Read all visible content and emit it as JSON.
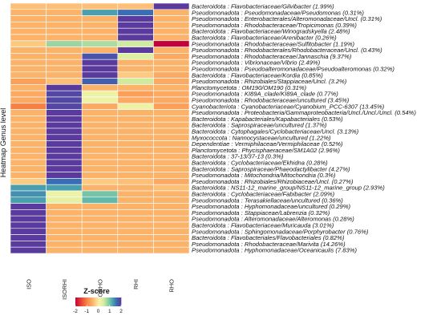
{
  "chart_data": {
    "type": "heatmap",
    "ylabel": "Heatmap Genus level",
    "columns": [
      "ISO",
      "ISORHI",
      "ISORHO",
      "RHI",
      "RHO"
    ],
    "rows": [
      "Bacteroidota : Flavobacteriaceae/Gilvibacter (1.99%)",
      "Pseudomonadota : Pseudomonadaceae/Pseudomonas (0.31%)",
      "Pseudomonadota : Enterobacterales/Alteromonadaceae/Uncl. (0.31%)",
      "Pseudomonadota : Rhodobacteraceae/Tropicimonas (0.39%)",
      "Bacteroidota : Flavobacteriaceae/Winogradskyella (2.48%)",
      "Bacteroidota : Flavobacteriaceae/Arenibacter (0.26%)",
      "Pseudomonadota : Rhodobacteraceae/Sulfitobacter (1.19%)",
      "Pseudomonadota : Rhodobacterales/Rhodobacteraceae/Uncl. (0.43%)",
      "Pseudomonadota : Rhodobacteraceae/Jannaschia (9.37%)",
      "Pseudomonadota : Vibrionaceae/Vibrio (2.49%)",
      "Pseudomonadota : Pseudoalteromonadaceae/Pseudoalteromonas (0.32%)",
      "Bacteroidota : Flavobacteriaceae/Kordia (0.85%)",
      "Pseudomonadota : Rhizobiales/Stappiaceae/Uncl. (3.2%)",
      "Planctomycetota : OM190/OM190 (0.31%)",
      "Pseudomonadota : KI89A_clade/KI89A_clade (0.77%)",
      "Pseudomonadota : Rhodobacteraceae/uncultured (3.45%)",
      "Cyanobacteriota : Cyanobacteriaceae/Cyanobium_PCC-6307 (13.45%)",
      "Pseudomonadota : Proteobacteria/Gammaproteobacteria/Uncl./Uncl./Uncl. (0.54%)",
      "Bacteroidota : Kapabacteriales/Kapabacteriales (0.53%)",
      "Bacteroidota : Saprospiraceae/uncultured (1.37%)",
      "Bacteroidota : Cytophagales/Cyclobacteriaceae/Uncl. (3.13%)",
      "Myxococcota : Nannocystaceae/uncultured (1.22%)",
      "Dependentiae : Vermiphilaceae/Vermiphilaceae (0.52%)",
      "Planctomycetota : Phycisphaeraceae/SM1A02 (2.96%)",
      "Bacteroidota : 37-13/37-13 (0.3%)",
      "Bacteroidota : Cyclobacteriaceae/Ekhidna (0.28%)",
      "Bacteroidota : Saprospiraceae/Phaeodactylibacter (4.27%)",
      "Pseudomonadota : Mitochondria/Mitochondria (0.3%)",
      "Pseudomonadota : Rhizobiales/Rhizobiaceae/Uncl. (0.27%)",
      "Bacteroidota : NS11-12_marine_group/NS11-12_marine_group (2.93%)",
      "Bacteroidota : Cyclobacteriaceae/Fabibacter (2.09%)",
      "Pseudomonadota : Terasakiellaceae/uncultured (0.36%)",
      "Pseudomonadota : Hyphomonadaceae/uncultured (0.29%)",
      "Pseudomonadota : Stappiaceae/Labrenzia (0.32%)",
      "Pseudomonadota : Alteromonadaceae/Alteromonas (0.28%)",
      "Bacteroidota : Flavobacteriaceae/Muricauda (3.01%)",
      "Pseudomonadota : Sphingomonadaceae/Porphyrobacter (0.76%)",
      "Bacteroidota : Flavobacteriales/Flavobacteriales (0.82%)",
      "Pseudomonadota : Rhodobacteraceae/Marivita (14.26%)",
      "Pseudomonadota : Hyphomonadaceae/Oceanicaulis (7.83%)"
    ],
    "values": [
      [
        -0.4,
        -0.4,
        -0.4,
        -0.4,
        2.0
      ],
      [
        -0.5,
        -0.5,
        1.3,
        1.6,
        -0.5
      ],
      [
        -0.5,
        -0.5,
        -0.5,
        2.0,
        -0.5
      ],
      [
        -0.5,
        -0.5,
        -0.5,
        2.0,
        -0.5
      ],
      [
        -0.5,
        -0.5,
        -0.5,
        2.0,
        -0.5
      ],
      [
        -0.5,
        -0.5,
        -0.5,
        2.0,
        -0.5
      ],
      [
        -0.3,
        0.8,
        0.7,
        0.5,
        -2.0
      ],
      [
        -0.5,
        -0.5,
        -0.5,
        2.0,
        -0.5
      ],
      [
        -0.5,
        -0.5,
        1.8,
        0.4,
        -0.6
      ],
      [
        -0.5,
        -0.5,
        2.0,
        -0.5,
        -0.5
      ],
      [
        -0.5,
        -0.5,
        2.0,
        -0.5,
        -0.5
      ],
      [
        -0.5,
        -0.5,
        2.0,
        -0.3,
        -0.6
      ],
      [
        -0.7,
        -0.4,
        1.7,
        0.5,
        -0.6
      ],
      [
        -0.5,
        2.0,
        -0.5,
        -0.5,
        -0.5
      ],
      [
        -0.6,
        1.9,
        0.2,
        -0.7,
        -0.6
      ],
      [
        -0.6,
        1.9,
        0.2,
        -0.6,
        -0.6
      ],
      [
        -1.0,
        1.9,
        -0.6,
        0.2,
        -0.7
      ],
      [
        -0.5,
        2.0,
        -0.5,
        -0.5,
        -0.5
      ],
      [
        -0.5,
        2.0,
        -0.5,
        -0.5,
        -0.5
      ],
      [
        -0.5,
        2.0,
        -0.5,
        -0.5,
        -0.5
      ],
      [
        -0.5,
        2.0,
        -0.5,
        -0.5,
        -0.5
      ],
      [
        -0.5,
        2.0,
        -0.5,
        -0.5,
        -0.5
      ],
      [
        -0.5,
        2.0,
        -0.5,
        -0.5,
        -0.5
      ],
      [
        -0.5,
        2.0,
        -0.5,
        -0.5,
        -0.5
      ],
      [
        -0.5,
        2.0,
        -0.5,
        -0.5,
        -0.5
      ],
      [
        -0.5,
        2.0,
        -0.5,
        -0.5,
        -0.5
      ],
      [
        -0.5,
        2.0,
        -0.5,
        -0.5,
        -0.5
      ],
      [
        -0.5,
        2.0,
        -0.5,
        -0.5,
        -0.5
      ],
      [
        -0.3,
        1.6,
        -0.3,
        -0.4,
        -0.6
      ],
      [
        1.3,
        1.3,
        -0.5,
        -0.5,
        -0.4
      ],
      [
        1.4,
        0.2,
        1.0,
        -0.5,
        -0.5
      ],
      [
        1.3,
        0.3,
        1.1,
        -0.5,
        -0.5
      ],
      [
        2.0,
        -0.5,
        -0.5,
        -0.5,
        -0.5
      ],
      [
        2.0,
        -0.5,
        -0.5,
        -0.5,
        -0.5
      ],
      [
        2.0,
        -0.5,
        -0.5,
        -0.5,
        -0.5
      ],
      [
        2.0,
        -0.5,
        -0.5,
        -0.5,
        -0.5
      ],
      [
        2.0,
        -0.5,
        -0.5,
        -0.5,
        -0.5
      ],
      [
        2.0,
        -0.5,
        -0.5,
        -0.5,
        -0.5
      ],
      [
        2.0,
        -0.5,
        -0.5,
        -0.5,
        -0.5
      ],
      [
        2.0,
        -0.5,
        -0.5,
        -0.5,
        -0.5
      ]
    ],
    "legend": {
      "title": "Z-score",
      "ticks": [
        "-2",
        "-1",
        "0",
        "1",
        "2"
      ],
      "range": [
        -2,
        2
      ],
      "placement": "bottom-center"
    },
    "colorscale": {
      "stops": [
        {
          "v": -2.0,
          "color": "#c2003c"
        },
        {
          "v": -1.4,
          "color": "#f04e32"
        },
        {
          "v": -0.9,
          "color": "#f98d4c"
        },
        {
          "v": -0.5,
          "color": "#fbb36a"
        },
        {
          "v": -0.2,
          "color": "#fdd68c"
        },
        {
          "v": 0.1,
          "color": "#f7f3aa"
        },
        {
          "v": 0.45,
          "color": "#d9eea0"
        },
        {
          "v": 0.8,
          "color": "#9ad5a3"
        },
        {
          "v": 1.2,
          "color": "#4fb0ac"
        },
        {
          "v": 1.6,
          "color": "#3a6db4"
        },
        {
          "v": 2.0,
          "color": "#5a3a9c"
        }
      ]
    }
  }
}
